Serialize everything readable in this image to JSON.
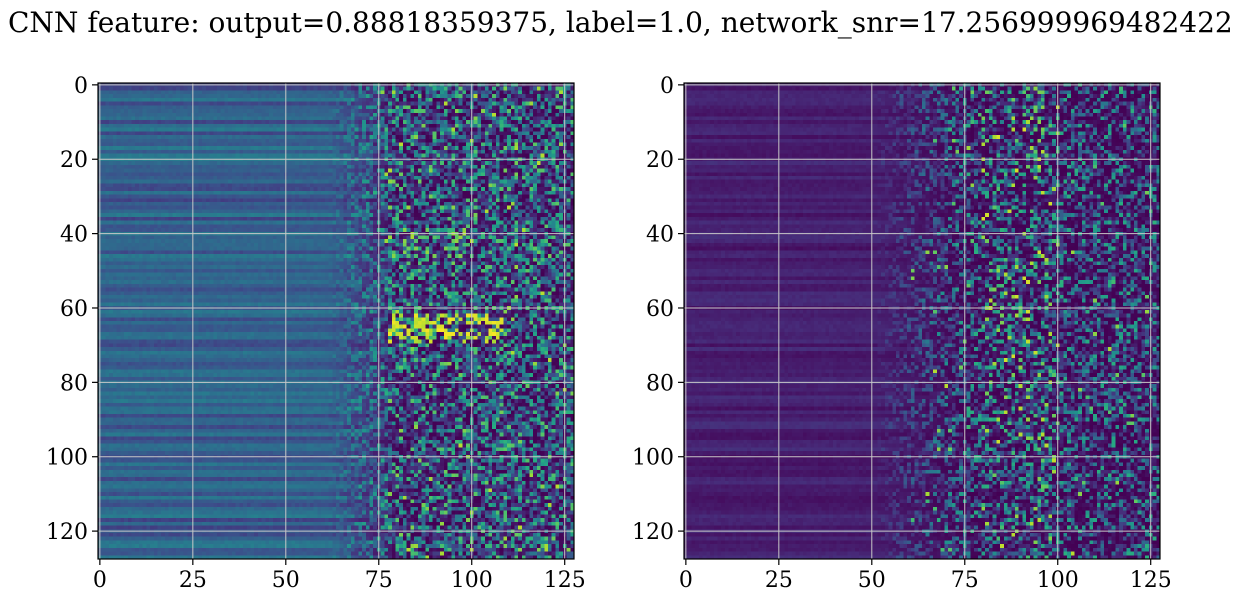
{
  "figure": {
    "title": "CNN feature: output=0.88818359375, label=1.0, network_snr=17.256999969482422"
  },
  "chart_data": [
    {
      "type": "heatmap",
      "panel": "left",
      "colormap": "viridis",
      "rows": 128,
      "cols": 128,
      "xlim": [
        -0.5,
        127.5
      ],
      "ylim": [
        127.5,
        -0.5
      ],
      "xticks": [
        0,
        25,
        50,
        75,
        100,
        125
      ],
      "yticks": [
        0,
        20,
        40,
        60,
        80,
        100,
        120
      ],
      "grid": true,
      "grid_color": "#c8c8c8",
      "description_of_values": "Rows show horizontal banding at columns 0-60 (low-mid values, blue/teal); columns beyond ~75 are noisy with bright yellow-green spots, strongest near rows 63-68 and columns 80-105."
    },
    {
      "type": "heatmap",
      "panel": "right",
      "colormap": "viridis",
      "rows": 128,
      "cols": 128,
      "xlim": [
        -0.5,
        127.5
      ],
      "ylim": [
        127.5,
        -0.5
      ],
      "xticks": [
        0,
        25,
        50,
        75,
        100,
        125
      ],
      "yticks": [
        0,
        20,
        40,
        60,
        80,
        100,
        120
      ],
      "grid": true,
      "grid_color": "#c8c8c8",
      "description_of_values": "Mostly dark purple for columns 0-55; sparse teal/green noise beyond column ~55, with brighter spots around columns 85-100."
    }
  ]
}
